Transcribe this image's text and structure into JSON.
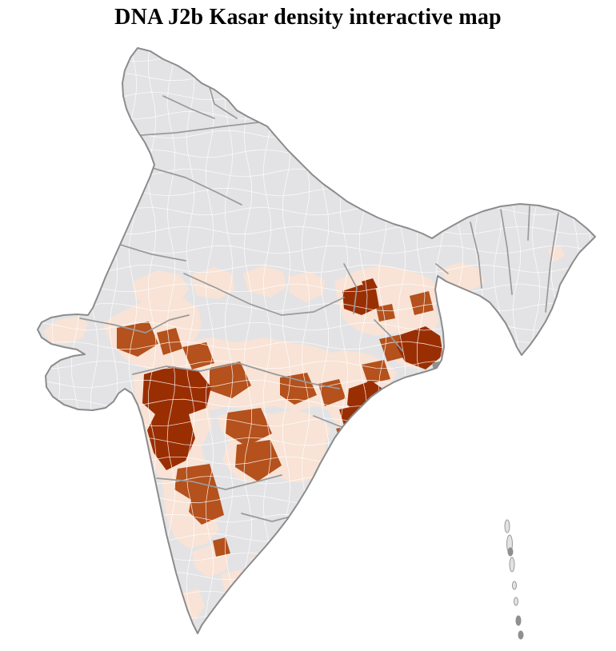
{
  "page": {
    "title": "DNA J2b Kasar density interactive map"
  },
  "map": {
    "kind": "choropleth",
    "colors": {
      "no_data": "#e3e3e5",
      "low": "#f8e3d6",
      "medium": "#b4511c",
      "high": "#9a2e03",
      "state_border": "#9a9a9a",
      "district_border": "#ffffff",
      "outline": "#8c8c8c"
    },
    "density_levels": [
      {
        "key": "no_data",
        "color": "#e3e3e5"
      },
      {
        "key": "low",
        "color": "#f8e3d6"
      },
      {
        "key": "medium",
        "color": "#b4511c"
      },
      {
        "key": "high",
        "color": "#9a2e03"
      }
    ]
  }
}
